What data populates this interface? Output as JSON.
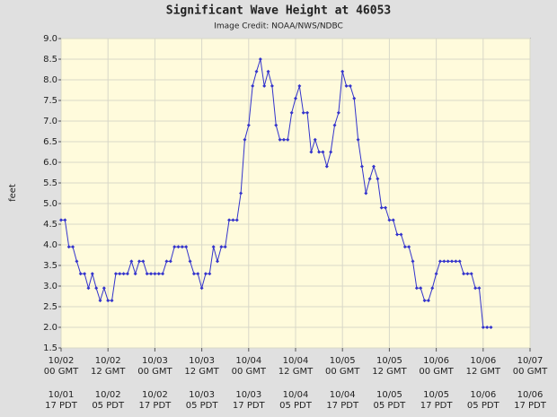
{
  "chart_data": {
    "type": "line",
    "title": "Significant Wave Height at 46053",
    "subtitle": "Image Credit: NOAA/NWS/NDBC",
    "y_label": "feet",
    "grid": true,
    "ylim": [
      1.5,
      9.0
    ],
    "yticks": [
      1.5,
      {
        "value": 2,
        "label": "2.0"
      },
      2.5,
      {
        "value": 3,
        "label": "3.0"
      },
      3.5,
      {
        "value": 4,
        "label": "4.0"
      },
      4.5,
      {
        "value": 5,
        "label": "5.0"
      },
      5.5,
      {
        "value": 6,
        "label": "6.0"
      },
      6.5,
      {
        "value": 7,
        "label": "7.0"
      },
      7.5,
      {
        "value": 8,
        "label": "8.0"
      },
      8.5,
      {
        "value": 9,
        "label": "9.0"
      }
    ],
    "xlim": [
      "10/02 00",
      "10/07 00"
    ],
    "xticks": [
      {
        "value": "10/02 00",
        "date": "10/02",
        "time": "00 GMT",
        "pdt_date": "10/01",
        "pdt_time": "17 PDT"
      },
      {
        "value": "10/02 12",
        "date": "10/02",
        "time": "12 GMT",
        "pdt_date": "10/02",
        "pdt_time": "05 PDT"
      },
      {
        "value": "10/03 00",
        "date": "10/03",
        "time": "00 GMT",
        "pdt_date": "10/02",
        "pdt_time": "17 PDT"
      },
      {
        "value": "10/03 12",
        "date": "10/03",
        "time": "12 GMT",
        "pdt_date": "10/03",
        "pdt_time": "05 PDT"
      },
      {
        "value": "10/04 00",
        "date": "10/04",
        "time": "00 GMT",
        "pdt_date": "10/03",
        "pdt_time": "17 PDT"
      },
      {
        "value": "10/04 12",
        "date": "10/04",
        "time": "12 GMT",
        "pdt_date": "10/04",
        "pdt_time": "05 PDT"
      },
      {
        "value": "10/05 00",
        "date": "10/05",
        "time": "00 GMT",
        "pdt_date": "10/04",
        "pdt_time": "17 PDT"
      },
      {
        "value": "10/05 12",
        "date": "10/05",
        "time": "12 GMT",
        "pdt_date": "10/05",
        "pdt_time": "05 PDT"
      },
      {
        "value": "10/06 00",
        "date": "10/06",
        "time": "00 GMT",
        "pdt_date": "10/05",
        "pdt_time": "17 PDT"
      },
      {
        "value": "10/06 12",
        "date": "10/06",
        "time": "12 GMT",
        "pdt_date": "10/06",
        "pdt_time": "05 PDT"
      },
      {
        "value": "10/07 00",
        "date": "10/07",
        "time": "00 GMT",
        "pdt_date": "10/06",
        "pdt_time": "17 PDT"
      }
    ],
    "x": [
      "10/02 00",
      "10/02 01",
      "10/02 02",
      "10/02 03",
      "10/02 04",
      "10/02 05",
      "10/02 06",
      "10/02 07",
      "10/02 08",
      "10/02 09",
      "10/02 10",
      "10/02 11",
      "10/02 12",
      "10/02 13",
      "10/02 14",
      "10/02 15",
      "10/02 16",
      "10/02 17",
      "10/02 18",
      "10/02 19",
      "10/02 20",
      "10/02 21",
      "10/02 22",
      "10/02 23",
      "10/03 00",
      "10/03 01",
      "10/03 02",
      "10/03 03",
      "10/03 04",
      "10/03 05",
      "10/03 06",
      "10/03 07",
      "10/03 08",
      "10/03 09",
      "10/03 10",
      "10/03 11",
      "10/03 12",
      "10/03 13",
      "10/03 14",
      "10/03 15",
      "10/03 16",
      "10/03 17",
      "10/03 18",
      "10/03 19",
      "10/03 20",
      "10/03 21",
      "10/03 22",
      "10/03 23",
      "10/04 00",
      "10/04 01",
      "10/04 02",
      "10/04 03",
      "10/04 04",
      "10/04 05",
      "10/04 06",
      "10/04 07",
      "10/04 08",
      "10/04 09",
      "10/04 10",
      "10/04 11",
      "10/04 12",
      "10/04 13",
      "10/04 14",
      "10/04 15",
      "10/04 16",
      "10/04 17",
      "10/04 18",
      "10/04 19",
      "10/04 20",
      "10/04 21",
      "10/04 22",
      "10/04 23",
      "10/05 00",
      "10/05 01",
      "10/05 02",
      "10/05 03",
      "10/05 04",
      "10/05 05",
      "10/05 06",
      "10/05 07",
      "10/05 08",
      "10/05 09",
      "10/05 10",
      "10/05 11",
      "10/05 12",
      "10/05 13",
      "10/05 14",
      "10/05 15",
      "10/05 16",
      "10/05 17",
      "10/05 18",
      "10/05 19",
      "10/05 20",
      "10/05 21",
      "10/05 22",
      "10/05 23",
      "10/06 00",
      "10/06 01",
      "10/06 02",
      "10/06 03",
      "10/06 04",
      "10/06 05",
      "10/06 06",
      "10/06 07",
      "10/06 08",
      "10/06 09",
      "10/06 10",
      "10/06 11",
      "10/06 12",
      "10/06 13",
      "10/06 14"
    ],
    "series": [
      {
        "name": "Significant Wave Height",
        "color": "#3333cc",
        "values": [
          4.6,
          4.6,
          3.95,
          3.95,
          3.6,
          3.3,
          3.3,
          2.95,
          3.3,
          2.95,
          2.65,
          2.95,
          2.65,
          2.65,
          3.3,
          3.3,
          3.3,
          3.3,
          3.6,
          3.3,
          3.6,
          3.6,
          3.3,
          3.3,
          3.3,
          3.3,
          3.3,
          3.6,
          3.6,
          3.95,
          3.95,
          3.95,
          3.95,
          3.6,
          3.3,
          3.3,
          2.95,
          3.3,
          3.3,
          3.95,
          3.6,
          3.95,
          3.95,
          4.6,
          4.6,
          4.6,
          5.25,
          6.55,
          6.9,
          7.85,
          8.2,
          8.5,
          7.85,
          8.2,
          7.85,
          6.9,
          6.55,
          6.55,
          6.55,
          7.2,
          7.55,
          7.85,
          7.2,
          7.2,
          6.25,
          6.55,
          6.25,
          6.25,
          5.9,
          6.25,
          6.9,
          7.2,
          8.2,
          7.85,
          7.85,
          7.55,
          6.55,
          5.9,
          5.25,
          5.6,
          5.9,
          5.6,
          4.9,
          4.9,
          4.6,
          4.6,
          4.25,
          4.25,
          3.95,
          3.95,
          3.6,
          2.95,
          2.95,
          2.65,
          2.65,
          2.95,
          3.3,
          3.6,
          3.6,
          3.6,
          3.6,
          3.6,
          3.6,
          3.3,
          3.3,
          3.3,
          2.95,
          2.95,
          2.0,
          2.0,
          2.0
        ]
      }
    ]
  }
}
